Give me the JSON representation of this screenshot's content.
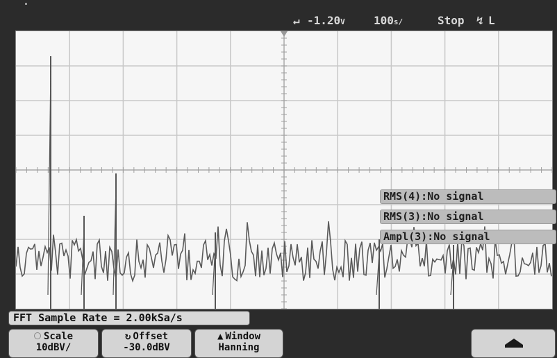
{
  "status": {
    "trigger_level": "-1.20",
    "trigger_unit": "V",
    "timebase": "100",
    "timebase_unit": "s/",
    "run_state": "Stop",
    "trigger_mode": "L"
  },
  "measurements": [
    "RMS(4):No signal",
    "RMS(3):No signal",
    "Ampl(3):No signal"
  ],
  "info": {
    "sample_rate": "FFT Sample Rate = 2.00kSa/s"
  },
  "softkeys": {
    "scale": {
      "label": "Scale",
      "value": "10dBV/"
    },
    "offset": {
      "label": "Offset",
      "value": "-30.0dBV"
    },
    "window": {
      "label": "Window",
      "value": "Hanning"
    }
  },
  "icons": {
    "trigger_position": "trigger-position-marker-icon",
    "trigger_slope": "falling-edge-icon",
    "offset_knob": "rotate-knob-icon",
    "window_arrow": "up-arrow-icon",
    "more_menu": "up-arrow-icon"
  }
}
